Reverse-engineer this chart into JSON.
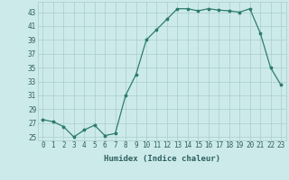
{
  "x": [
    0,
    1,
    2,
    3,
    4,
    5,
    6,
    7,
    8,
    9,
    10,
    11,
    12,
    13,
    14,
    15,
    16,
    17,
    18,
    19,
    20,
    21,
    22,
    23
  ],
  "y": [
    27.5,
    27.2,
    26.5,
    25.0,
    26.0,
    26.7,
    25.2,
    25.5,
    31.0,
    34.0,
    39.0,
    40.5,
    42.0,
    43.5,
    43.5,
    43.2,
    43.5,
    43.3,
    43.2,
    43.0,
    43.5,
    40.0,
    35.0,
    32.5
  ],
  "xlabel": "Humidex (Indice chaleur)",
  "xlim": [
    -0.5,
    23.5
  ],
  "ylim": [
    24.5,
    44.5
  ],
  "yticks": [
    25,
    27,
    29,
    31,
    33,
    35,
    37,
    39,
    41,
    43
  ],
  "xticks": [
    0,
    1,
    2,
    3,
    4,
    5,
    6,
    7,
    8,
    9,
    10,
    11,
    12,
    13,
    14,
    15,
    16,
    17,
    18,
    19,
    20,
    21,
    22,
    23
  ],
  "line_color": "#2d7d6b",
  "marker": "*",
  "markersize": 2.5,
  "linewidth": 0.9,
  "bg_color": "#cdeaea",
  "grid_color": "#a8cccc",
  "label_color": "#2d6060",
  "xlabel_fontsize": 6.5,
  "tick_fontsize": 5.5
}
